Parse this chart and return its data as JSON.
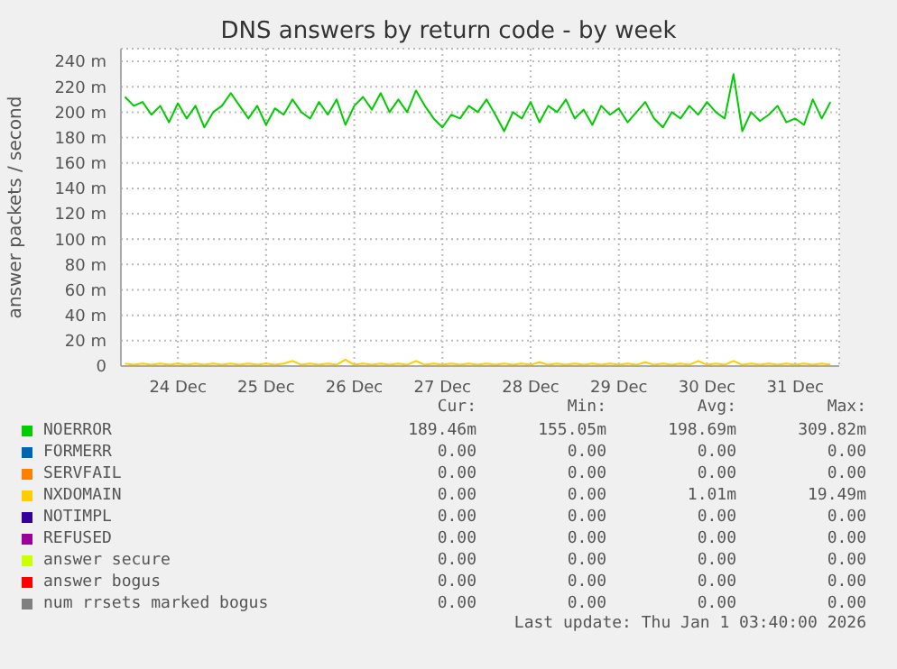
{
  "chart_data": {
    "type": "line",
    "title": "DNS answers by return code - by week",
    "ylabel": "answer packets / second",
    "x": [
      "--12-23T21:36",
      "--12-24T00:00",
      "--12-24T02:24",
      "--12-24T04:48",
      "--12-24T07:12",
      "--12-24T09:36",
      "--12-24T12:00",
      "--12-24T14:24",
      "--12-24T16:48",
      "--12-24T19:12",
      "--12-24T21:36",
      "--12-25T00:00",
      "--12-25T02:24",
      "--12-25T04:48",
      "--12-25T07:12",
      "--12-25T09:36",
      "--12-25T12:00",
      "--12-25T14:24",
      "--12-25T16:48",
      "--12-25T19:12",
      "--12-25T21:36",
      "--12-26T00:00",
      "--12-26T02:24",
      "--12-26T04:48",
      "--12-26T07:12",
      "--12-26T09:36",
      "--12-26T12:00",
      "--12-26T14:24",
      "--12-26T16:48",
      "--12-26T19:12",
      "--12-26T21:36",
      "--12-27T00:00",
      "--12-27T02:24",
      "--12-27T04:48",
      "--12-27T07:12",
      "--12-27T09:36",
      "--12-27T12:00",
      "--12-27T14:24",
      "--12-27T16:48",
      "--12-27T19:12",
      "--12-27T21:36",
      "--12-28T00:00",
      "--12-28T02:24",
      "--12-28T04:48",
      "--12-28T07:12",
      "--12-28T09:36",
      "--12-28T12:00",
      "--12-28T14:24",
      "--12-28T16:48",
      "--12-28T19:12",
      "--12-28T21:36",
      "--12-29T00:00",
      "--12-29T02:24",
      "--12-29T04:48",
      "--12-29T07:12",
      "--12-29T09:36",
      "--12-29T12:00",
      "--12-29T14:24",
      "--12-29T16:48",
      "--12-29T19:12",
      "--12-29T21:36",
      "--12-30T00:00",
      "--12-30T02:24",
      "--12-30T04:48",
      "--12-30T07:12",
      "--12-30T09:36",
      "--12-30T12:00",
      "--12-30T14:24",
      "--12-30T16:48",
      "--12-30T19:12",
      "--12-30T21:36",
      "--12-31T00:00",
      "--12-31T02:24",
      "--12-31T04:48",
      "--12-31T07:12",
      "--12-31T09:36",
      "--12-31T12:00",
      "--12-31T14:24",
      "--12-31T16:48",
      "--12-31T19:12",
      "--12-31T21:36"
    ],
    "series": [
      {
        "name": "NOERROR",
        "color": "#00cc00",
        "values": [
          212,
          205,
          208,
          198,
          205,
          192,
          207,
          195,
          205,
          188,
          200,
          205,
          215,
          205,
          195,
          205,
          190,
          203,
          198,
          210,
          200,
          195,
          208,
          198,
          210,
          190,
          205,
          212,
          202,
          215,
          200,
          210,
          200,
          217,
          205,
          195,
          188,
          198,
          195,
          205,
          200,
          210,
          198,
          185,
          200,
          195,
          208,
          192,
          205,
          200,
          210,
          195,
          202,
          190,
          205,
          198,
          203,
          192,
          200,
          208,
          195,
          188,
          200,
          195,
          205,
          198,
          208,
          200,
          195,
          230,
          185,
          200,
          193,
          198,
          205,
          192,
          195,
          190,
          210,
          195,
          208
        ]
      },
      {
        "name": "FORMERR",
        "color": "#0066b3",
        "values": [
          null,
          null,
          null,
          null,
          null,
          null,
          null,
          null,
          null,
          null,
          null,
          null,
          null,
          null,
          null,
          null,
          null,
          null,
          null,
          null,
          null,
          null,
          null,
          null,
          null,
          null,
          null,
          null,
          null,
          null,
          null,
          null,
          null,
          null,
          null,
          null,
          null,
          null,
          null,
          null,
          null,
          null,
          null,
          null,
          null,
          null,
          null,
          null,
          null,
          null,
          null,
          null,
          null,
          null,
          null,
          null,
          null,
          null,
          null,
          null,
          null,
          null,
          null,
          null,
          null,
          null,
          null,
          null,
          null,
          null,
          null,
          null,
          null,
          null,
          null,
          null,
          null,
          null,
          null,
          null,
          null
        ]
      },
      {
        "name": "SERVFAIL",
        "color": "#ff8000",
        "values": [
          null,
          null,
          null,
          null,
          null,
          null,
          null,
          null,
          null,
          null,
          null,
          null,
          null,
          null,
          null,
          null,
          null,
          null,
          null,
          null,
          null,
          null,
          null,
          null,
          null,
          null,
          null,
          null,
          null,
          null,
          null,
          null,
          null,
          null,
          null,
          null,
          null,
          null,
          null,
          null,
          null,
          null,
          null,
          null,
          null,
          null,
          null,
          null,
          null,
          null,
          null,
          null,
          null,
          null,
          null,
          null,
          null,
          null,
          null,
          null,
          null,
          null,
          null,
          null,
          null,
          null,
          null,
          null,
          null,
          null,
          null,
          null,
          null,
          null,
          null,
          null,
          null,
          null,
          null,
          null,
          null
        ]
      },
      {
        "name": "NXDOMAIN",
        "color": "#ffcc00",
        "values": [
          2,
          1,
          2,
          1,
          2,
          1,
          2,
          1,
          2,
          1,
          2,
          1,
          2,
          1,
          2,
          1,
          2,
          1,
          2,
          4,
          1,
          2,
          1,
          2,
          1,
          5,
          1,
          2,
          1,
          2,
          1,
          2,
          1,
          4,
          1,
          2,
          1,
          2,
          1,
          2,
          1,
          2,
          1,
          2,
          1,
          2,
          1,
          3,
          1,
          2,
          1,
          2,
          1,
          2,
          1,
          2,
          1,
          2,
          1,
          3,
          1,
          2,
          1,
          2,
          1,
          4,
          1,
          2,
          1,
          4,
          1,
          2,
          1,
          2,
          1,
          2,
          1,
          2,
          1,
          2,
          1
        ]
      },
      {
        "name": "NOTIMPL",
        "color": "#330099",
        "values": [
          null,
          null,
          null,
          null,
          null,
          null,
          null,
          null,
          null,
          null,
          null,
          null,
          null,
          null,
          null,
          null,
          null,
          null,
          null,
          null,
          null,
          null,
          null,
          null,
          null,
          null,
          null,
          null,
          null,
          null,
          null,
          null,
          null,
          null,
          null,
          null,
          null,
          null,
          null,
          null,
          null,
          null,
          null,
          null,
          null,
          null,
          null,
          null,
          null,
          null,
          null,
          null,
          null,
          null,
          null,
          null,
          null,
          null,
          null,
          null,
          null,
          null,
          null,
          null,
          null,
          null,
          null,
          null,
          null,
          null,
          null,
          null,
          null,
          null,
          null,
          null,
          null,
          null,
          null,
          null,
          null
        ]
      },
      {
        "name": "REFUSED",
        "color": "#990099",
        "values": [
          null,
          null,
          null,
          null,
          null,
          null,
          null,
          null,
          null,
          null,
          null,
          null,
          null,
          null,
          null,
          null,
          null,
          null,
          null,
          null,
          null,
          null,
          null,
          null,
          null,
          null,
          null,
          null,
          null,
          null,
          null,
          null,
          null,
          null,
          null,
          null,
          null,
          null,
          null,
          null,
          null,
          null,
          null,
          null,
          null,
          null,
          null,
          null,
          null,
          null,
          null,
          null,
          null,
          null,
          null,
          null,
          null,
          null,
          null,
          null,
          null,
          null,
          null,
          null,
          null,
          null,
          null,
          null,
          null,
          null,
          null,
          null,
          null,
          null,
          null,
          null,
          null,
          null,
          null,
          null,
          null
        ]
      },
      {
        "name": "answer secure",
        "color": "#ccff00",
        "values": [
          null,
          null,
          null,
          null,
          null,
          null,
          null,
          null,
          null,
          null,
          null,
          null,
          null,
          null,
          null,
          null,
          null,
          null,
          null,
          null,
          null,
          null,
          null,
          null,
          null,
          null,
          null,
          null,
          null,
          null,
          null,
          null,
          null,
          null,
          null,
          null,
          null,
          null,
          null,
          null,
          null,
          null,
          null,
          null,
          null,
          null,
          null,
          null,
          null,
          null,
          null,
          null,
          null,
          null,
          null,
          null,
          null,
          null,
          null,
          null,
          null,
          null,
          null,
          null,
          null,
          null,
          null,
          null,
          null,
          null,
          null,
          null,
          null,
          null,
          null,
          null,
          null,
          null,
          null,
          null,
          null
        ]
      },
      {
        "name": "answer bogus",
        "color": "#ff0000",
        "values": [
          null,
          null,
          null,
          null,
          null,
          null,
          null,
          null,
          null,
          null,
          null,
          null,
          null,
          null,
          null,
          null,
          null,
          null,
          null,
          null,
          null,
          null,
          null,
          null,
          null,
          null,
          null,
          null,
          null,
          null,
          null,
          null,
          null,
          null,
          null,
          null,
          null,
          null,
          null,
          null,
          null,
          null,
          null,
          null,
          null,
          null,
          null,
          null,
          null,
          null,
          null,
          null,
          null,
          null,
          null,
          null,
          null,
          null,
          null,
          null,
          null,
          null,
          null,
          null,
          null,
          null,
          null,
          null,
          null,
          null,
          null,
          null,
          null,
          null,
          null,
          null,
          null,
          null,
          null,
          null,
          null
        ]
      },
      {
        "name": "num rrsets marked bogus",
        "color": "#808080",
        "values": [
          null,
          null,
          null,
          null,
          null,
          null,
          null,
          null,
          null,
          null,
          null,
          null,
          null,
          null,
          null,
          null,
          null,
          null,
          null,
          null,
          null,
          null,
          null,
          null,
          null,
          null,
          null,
          null,
          null,
          null,
          null,
          null,
          null,
          null,
          null,
          null,
          null,
          null,
          null,
          null,
          null,
          null,
          null,
          null,
          null,
          null,
          null,
          null,
          null,
          null,
          null,
          null,
          null,
          null,
          null,
          null,
          null,
          null,
          null,
          null,
          null,
          null,
          null,
          null,
          null,
          null,
          null,
          null,
          null,
          null,
          null,
          null,
          null,
          null,
          null,
          null,
          null,
          null,
          null,
          null,
          null
        ]
      }
    ],
    "xlim": [
      "--12-23T20:30",
      "--12-31T23:59"
    ],
    "xticks": [
      {
        "value": "--12-24T12:00",
        "label": "24 Dec"
      },
      {
        "value": "--12-25T12:00",
        "label": "25 Dec"
      },
      {
        "value": "--12-26T12:00",
        "label": "26 Dec"
      },
      {
        "value": "--12-27T12:00",
        "label": "27 Dec"
      },
      {
        "value": "--12-28T12:00",
        "label": "28 Dec"
      },
      {
        "value": "--12-29T12:00",
        "label": "29 Dec"
      },
      {
        "value": "--12-30T12:00",
        "label": "30 Dec"
      },
      {
        "value": "--12-31T12:00",
        "label": "31 Dec"
      }
    ],
    "ylim": [
      0,
      250
    ],
    "yticks": [
      0,
      {
        "value": 20,
        "label": "20 m"
      },
      {
        "value": 40,
        "label": "40 m"
      },
      {
        "value": 60,
        "label": "60 m"
      },
      {
        "value": 80,
        "label": "80 m"
      },
      {
        "value": 100,
        "label": "100 m"
      },
      {
        "value": 120,
        "label": "120 m"
      },
      {
        "value": 140,
        "label": "140 m"
      },
      {
        "value": 160,
        "label": "160 m"
      },
      {
        "value": 180,
        "label": "180 m"
      },
      {
        "value": 200,
        "label": "200 m"
      },
      {
        "value": 220,
        "label": "220 m"
      },
      {
        "value": 240,
        "label": "240 m"
      }
    ],
    "grid": true,
    "legend": "bottom",
    "marker": "none",
    "line_style": "solid",
    "annotations": [
      "Cur:",
      "Min:",
      "Avg:",
      "Max:",
      "189.46m",
      "155.05m",
      "198.69m",
      "309.82m",
      "0.00",
      "0.00",
      "0.00",
      "0.00",
      "0.00",
      "0.00",
      "0.00",
      "0.00",
      "0.00",
      "0.00",
      "1.01m",
      "19.49m",
      "0.00",
      "0.00",
      "0.00",
      "0.00",
      "0.00",
      "0.00",
      "0.00",
      "0.00",
      "0.00",
      "0.00",
      "0.00",
      "0.00",
      "0.00",
      "0.00",
      "0.00",
      "0.00",
      "0.00",
      "0.00",
      "0.00",
      "0.00",
      "Last update: Thu Jan  1 03:40:00 2026"
    ]
  }
}
